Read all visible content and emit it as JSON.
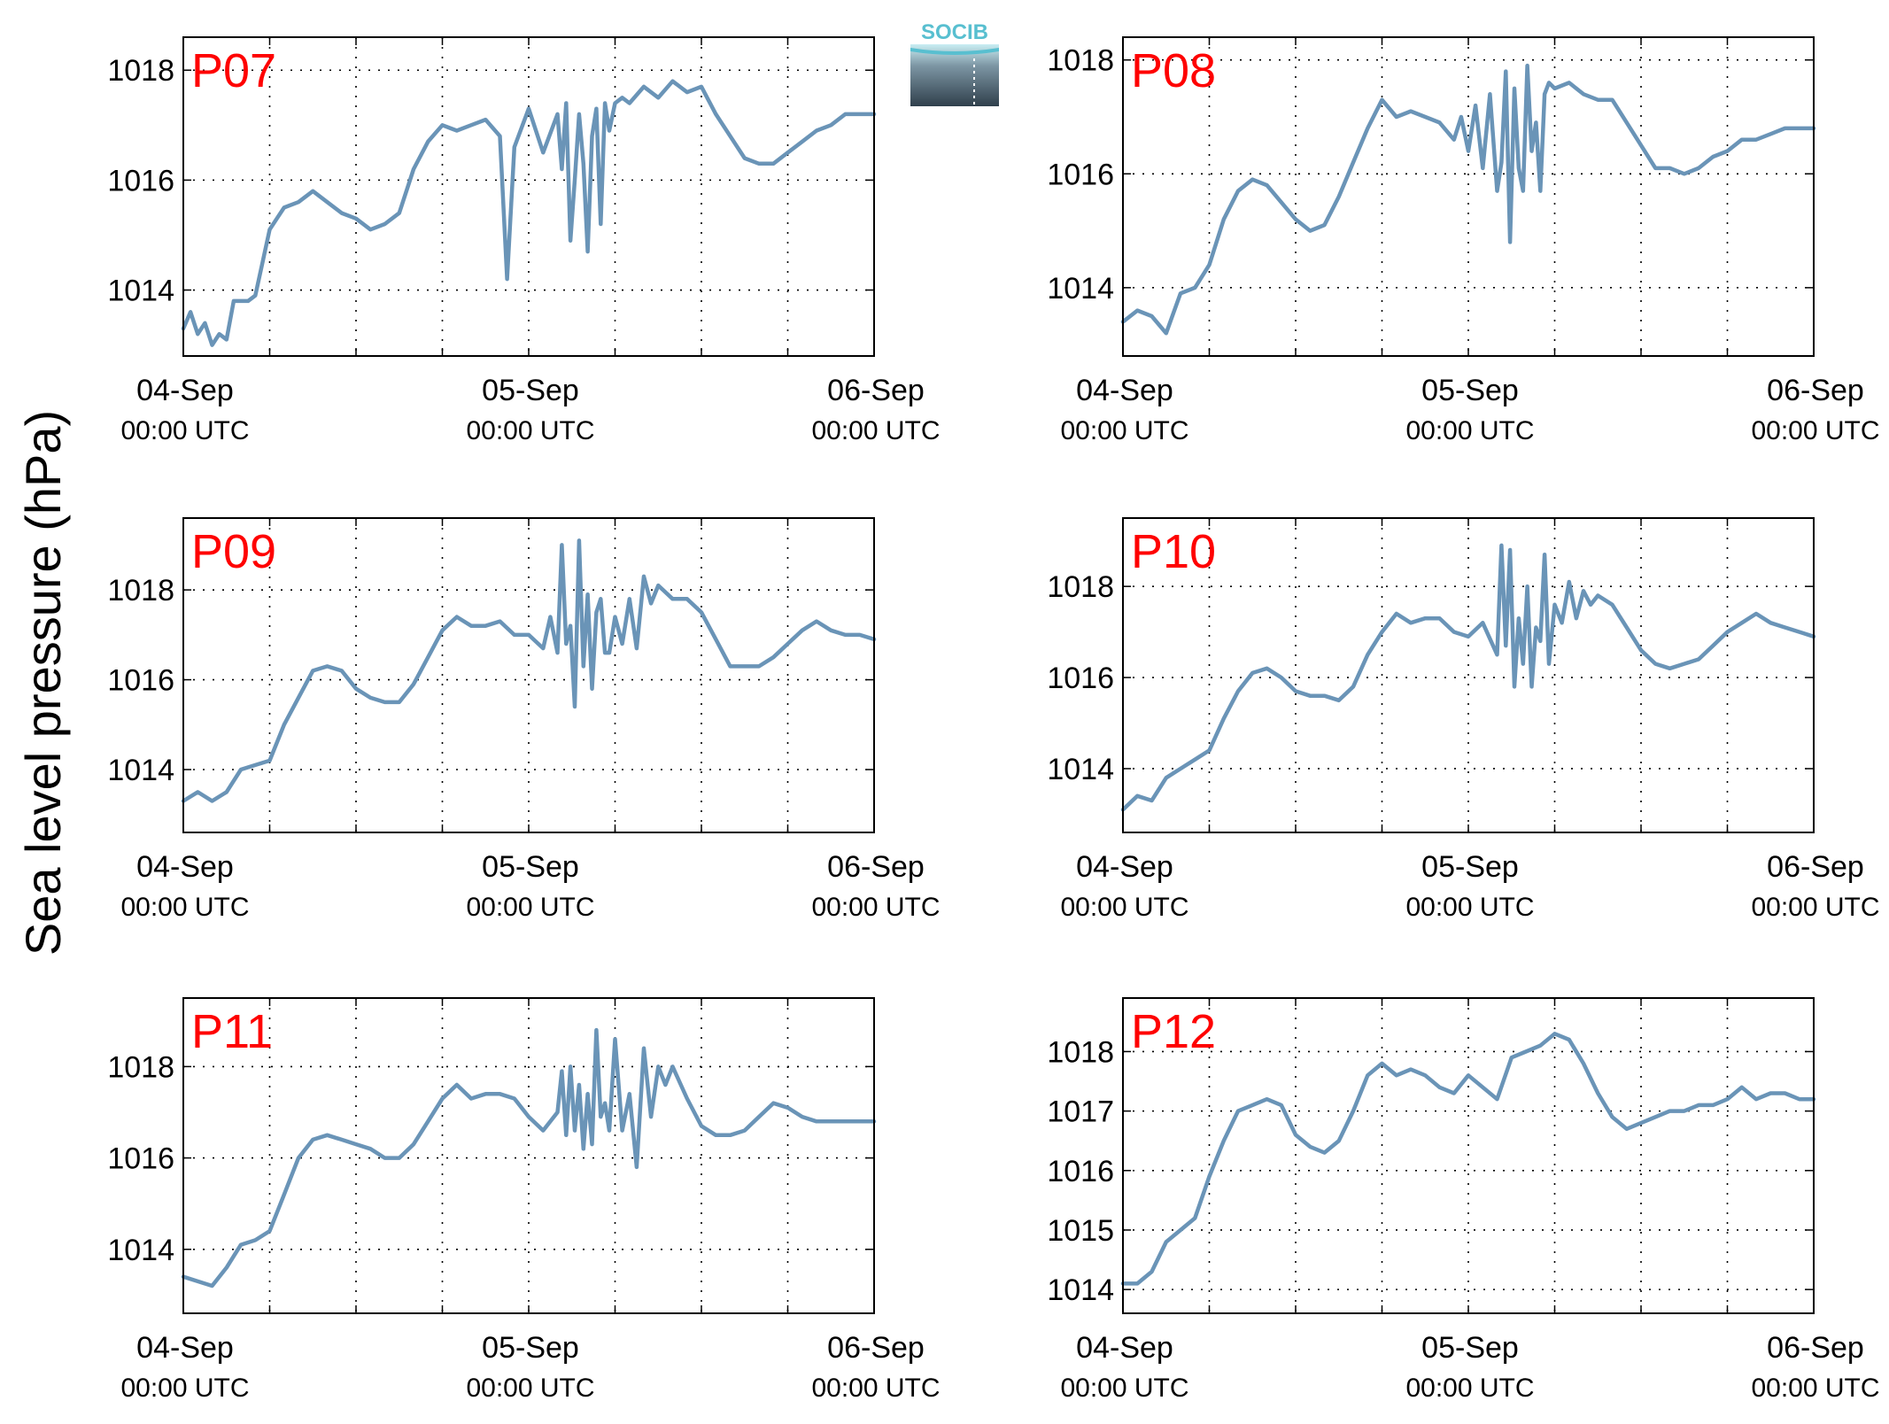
{
  "figure": {
    "ylabel": "Sea level pressure (hPa)",
    "logo_text": "SOCIB",
    "colors": {
      "line": "#6a94b7",
      "title": "#ff0000",
      "grid": "#000000",
      "logo_teal": "#58bfd0",
      "logo_dark": "#30404c"
    }
  },
  "chart_data": [
    {
      "type": "line",
      "title": "P07",
      "x_tick_dates": [
        "04-Sep",
        "05-Sep",
        "06-Sep"
      ],
      "x_tick_times": [
        "00:00 UTC",
        "00:00 UTC",
        "00:00 UTC"
      ],
      "xlim_hours": [
        0,
        48
      ],
      "ylim": [
        1012.8,
        1018.6
      ],
      "yticks": [
        1014,
        1016,
        1018
      ],
      "grid": true,
      "series": [
        {
          "x": [
            0,
            0.5,
            1,
            1.5,
            2,
            2.5,
            3,
            3.5,
            4,
            4.5,
            5,
            5.5,
            6,
            6.5,
            7,
            8,
            9,
            10,
            11,
            12,
            13,
            14,
            15,
            16,
            17,
            18,
            19,
            20,
            21,
            22,
            22.5,
            23,
            24,
            25,
            26,
            26.3,
            26.6,
            26.9,
            27.2,
            27.5,
            27.8,
            28.1,
            28.4,
            28.7,
            29,
            29.3,
            29.6,
            30,
            30.5,
            31,
            32,
            33,
            34,
            35,
            36,
            37,
            38,
            39,
            40,
            41,
            42,
            43,
            44,
            45,
            46,
            47,
            48
          ],
          "y": [
            1013.3,
            1013.6,
            1013.2,
            1013.4,
            1013.0,
            1013.2,
            1013.1,
            1013.8,
            1013.8,
            1013.8,
            1013.9,
            1014.5,
            1015.1,
            1015.3,
            1015.5,
            1015.6,
            1015.8,
            1015.6,
            1015.4,
            1015.3,
            1015.1,
            1015.2,
            1015.4,
            1016.2,
            1016.7,
            1017.0,
            1016.9,
            1017.0,
            1017.1,
            1016.8,
            1014.2,
            1016.6,
            1017.3,
            1016.5,
            1017.2,
            1016.2,
            1017.4,
            1014.9,
            1016.0,
            1017.2,
            1016.3,
            1014.7,
            1016.8,
            1017.3,
            1015.2,
            1017.4,
            1016.9,
            1017.4,
            1017.5,
            1017.4,
            1017.7,
            1017.5,
            1017.8,
            1017.6,
            1017.7,
            1017.2,
            1016.8,
            1016.4,
            1016.3,
            1016.3,
            1016.5,
            1016.7,
            1016.9,
            1017.0,
            1017.2,
            1017.2,
            1017.2
          ]
        }
      ]
    },
    {
      "type": "line",
      "title": "P08",
      "x_tick_dates": [
        "04-Sep",
        "05-Sep",
        "06-Sep"
      ],
      "x_tick_times": [
        "00:00 UTC",
        "00:00 UTC",
        "00:00 UTC"
      ],
      "xlim_hours": [
        0,
        48
      ],
      "ylim": [
        1012.8,
        1018.4
      ],
      "yticks": [
        1014,
        1016,
        1018
      ],
      "grid": true,
      "series": [
        {
          "x": [
            0,
            1,
            2,
            3,
            4,
            5,
            6,
            7,
            8,
            9,
            10,
            11,
            12,
            13,
            14,
            15,
            16,
            17,
            18,
            19,
            20,
            21,
            22,
            23,
            23.5,
            24,
            24.5,
            25,
            25.5,
            26,
            26.3,
            26.6,
            26.9,
            27.2,
            27.5,
            27.8,
            28.1,
            28.4,
            28.7,
            29,
            29.3,
            29.6,
            30,
            31,
            32,
            33,
            34,
            35,
            36,
            37,
            38,
            39,
            40,
            41,
            42,
            43,
            44,
            45,
            46,
            47,
            48
          ],
          "y": [
            1013.4,
            1013.6,
            1013.5,
            1013.2,
            1013.9,
            1014.0,
            1014.4,
            1015.2,
            1015.7,
            1015.9,
            1015.8,
            1015.5,
            1015.2,
            1015.0,
            1015.1,
            1015.6,
            1016.2,
            1016.8,
            1017.3,
            1017.0,
            1017.1,
            1017.0,
            1016.9,
            1016.6,
            1017.0,
            1016.4,
            1017.2,
            1016.1,
            1017.4,
            1015.7,
            1016.2,
            1017.8,
            1014.8,
            1017.5,
            1016.1,
            1015.7,
            1017.9,
            1016.4,
            1016.9,
            1015.7,
            1017.4,
            1017.6,
            1017.5,
            1017.6,
            1017.4,
            1017.3,
            1017.3,
            1016.9,
            1016.5,
            1016.1,
            1016.1,
            1016.0,
            1016.1,
            1016.3,
            1016.4,
            1016.6,
            1016.6,
            1016.7,
            1016.8,
            1016.8,
            1016.8
          ]
        }
      ]
    },
    {
      "type": "line",
      "title": "P09",
      "x_tick_dates": [
        "04-Sep",
        "05-Sep",
        "06-Sep"
      ],
      "x_tick_times": [
        "00:00 UTC",
        "00:00 UTC",
        "00:00 UTC"
      ],
      "xlim_hours": [
        0,
        48
      ],
      "ylim": [
        1012.6,
        1019.6
      ],
      "yticks": [
        1014,
        1016,
        1018
      ],
      "grid": true,
      "series": [
        {
          "x": [
            0,
            1,
            2,
            3,
            4,
            5,
            6,
            7,
            8,
            9,
            10,
            11,
            12,
            13,
            14,
            15,
            16,
            17,
            18,
            19,
            20,
            21,
            22,
            23,
            24,
            25,
            25.5,
            26,
            26.3,
            26.6,
            26.9,
            27.2,
            27.5,
            27.8,
            28.1,
            28.4,
            28.7,
            29,
            29.3,
            29.6,
            30,
            30.5,
            31,
            31.5,
            32,
            32.5,
            33,
            34,
            35,
            36,
            37,
            38,
            39,
            40,
            41,
            42,
            43,
            44,
            45,
            46,
            47,
            48
          ],
          "y": [
            1013.3,
            1013.5,
            1013.3,
            1013.5,
            1014.0,
            1014.1,
            1014.2,
            1015.0,
            1015.6,
            1016.2,
            1016.3,
            1016.2,
            1015.8,
            1015.6,
            1015.5,
            1015.5,
            1015.9,
            1016.5,
            1017.1,
            1017.4,
            1017.2,
            1017.2,
            1017.3,
            1017.0,
            1017.0,
            1016.7,
            1017.4,
            1016.6,
            1019.0,
            1016.8,
            1017.2,
            1015.4,
            1019.1,
            1016.3,
            1017.9,
            1015.8,
            1017.5,
            1017.8,
            1016.6,
            1016.6,
            1017.4,
            1016.8,
            1017.8,
            1016.7,
            1018.3,
            1017.7,
            1018.1,
            1017.8,
            1017.8,
            1017.5,
            1016.9,
            1016.3,
            1016.3,
            1016.3,
            1016.5,
            1016.8,
            1017.1,
            1017.3,
            1017.1,
            1017.0,
            1017.0,
            1016.9
          ]
        }
      ]
    },
    {
      "type": "line",
      "title": "P10",
      "x_tick_dates": [
        "04-Sep",
        "05-Sep",
        "06-Sep"
      ],
      "x_tick_times": [
        "00:00 UTC",
        "00:00 UTC",
        "00:00 UTC"
      ],
      "xlim_hours": [
        0,
        48
      ],
      "ylim": [
        1012.6,
        1019.5
      ],
      "yticks": [
        1014,
        1016,
        1018
      ],
      "grid": true,
      "series": [
        {
          "x": [
            0,
            1,
            2,
            3,
            4,
            5,
            6,
            7,
            8,
            9,
            10,
            11,
            12,
            13,
            14,
            15,
            16,
            17,
            18,
            19,
            20,
            21,
            22,
            23,
            24,
            25,
            26,
            26.3,
            26.6,
            26.9,
            27.2,
            27.5,
            27.8,
            28.1,
            28.4,
            28.7,
            29,
            29.3,
            29.6,
            30,
            30.5,
            31,
            31.5,
            32,
            32.5,
            33,
            34,
            35,
            36,
            37,
            38,
            39,
            40,
            41,
            42,
            43,
            44,
            45,
            46,
            47,
            48
          ],
          "y": [
            1013.1,
            1013.4,
            1013.3,
            1013.8,
            1014.0,
            1014.2,
            1014.4,
            1015.1,
            1015.7,
            1016.1,
            1016.2,
            1016.0,
            1015.7,
            1015.6,
            1015.6,
            1015.5,
            1015.8,
            1016.5,
            1017.0,
            1017.4,
            1017.2,
            1017.3,
            1017.3,
            1017.0,
            1016.9,
            1017.2,
            1016.5,
            1018.9,
            1016.7,
            1018.8,
            1015.8,
            1017.3,
            1016.3,
            1018.0,
            1015.8,
            1017.1,
            1016.8,
            1018.7,
            1016.3,
            1017.6,
            1017.2,
            1018.1,
            1017.3,
            1017.9,
            1017.6,
            1017.8,
            1017.6,
            1017.1,
            1016.6,
            1016.3,
            1016.2,
            1016.3,
            1016.4,
            1016.7,
            1017.0,
            1017.2,
            1017.4,
            1017.2,
            1017.1,
            1017.0,
            1016.9
          ]
        }
      ]
    },
    {
      "type": "line",
      "title": "P11",
      "x_tick_dates": [
        "04-Sep",
        "05-Sep",
        "06-Sep"
      ],
      "x_tick_times": [
        "00:00 UTC",
        "00:00 UTC",
        "00:00 UTC"
      ],
      "xlim_hours": [
        0,
        48
      ],
      "ylim": [
        1012.6,
        1019.5
      ],
      "yticks": [
        1014,
        1016,
        1018
      ],
      "grid": true,
      "series": [
        {
          "x": [
            0,
            1,
            2,
            3,
            4,
            5,
            6,
            7,
            8,
            9,
            10,
            11,
            12,
            13,
            14,
            15,
            16,
            17,
            18,
            19,
            20,
            21,
            22,
            23,
            24,
            25,
            26,
            26.3,
            26.6,
            26.9,
            27.2,
            27.5,
            27.8,
            28.1,
            28.4,
            28.7,
            29,
            29.3,
            29.6,
            30,
            30.5,
            31,
            31.5,
            32,
            32.5,
            33,
            33.5,
            34,
            35,
            36,
            37,
            38,
            39,
            40,
            41,
            42,
            43,
            44,
            45,
            46,
            47,
            48
          ],
          "y": [
            1013.4,
            1013.3,
            1013.2,
            1013.6,
            1014.1,
            1014.2,
            1014.4,
            1015.2,
            1016.0,
            1016.4,
            1016.5,
            1016.4,
            1016.3,
            1016.2,
            1016.0,
            1016.0,
            1016.3,
            1016.8,
            1017.3,
            1017.6,
            1017.3,
            1017.4,
            1017.4,
            1017.3,
            1016.9,
            1016.6,
            1017.0,
            1017.9,
            1016.5,
            1018.0,
            1016.6,
            1017.6,
            1016.2,
            1017.4,
            1016.3,
            1018.8,
            1016.9,
            1017.2,
            1016.6,
            1018.6,
            1016.6,
            1017.4,
            1015.8,
            1018.4,
            1016.9,
            1018.0,
            1017.6,
            1018.0,
            1017.3,
            1016.7,
            1016.5,
            1016.5,
            1016.6,
            1016.9,
            1017.2,
            1017.1,
            1016.9,
            1016.8,
            1016.8,
            1016.8,
            1016.8,
            1016.8
          ]
        }
      ]
    },
    {
      "type": "line",
      "title": "P12",
      "x_tick_dates": [
        "04-Sep",
        "05-Sep",
        "06-Sep"
      ],
      "x_tick_times": [
        "00:00 UTC",
        "00:00 UTC",
        "00:00 UTC"
      ],
      "xlim_hours": [
        0,
        48
      ],
      "ylim": [
        1013.6,
        1018.9
      ],
      "yticks": [
        1014,
        1015,
        1016,
        1017,
        1018
      ],
      "grid": true,
      "series": [
        {
          "x": [
            0,
            1,
            2,
            3,
            4,
            5,
            6,
            7,
            8,
            9,
            10,
            11,
            12,
            13,
            14,
            15,
            16,
            17,
            18,
            19,
            20,
            21,
            22,
            23,
            24,
            25,
            26,
            27,
            28,
            29,
            30,
            31,
            32,
            33,
            34,
            35,
            36,
            37,
            38,
            39,
            40,
            41,
            42,
            43,
            44,
            45,
            46,
            47,
            48
          ],
          "y": [
            1014.1,
            1014.1,
            1014.3,
            1014.8,
            1015.0,
            1015.2,
            1015.9,
            1016.5,
            1017.0,
            1017.1,
            1017.2,
            1017.1,
            1016.6,
            1016.4,
            1016.3,
            1016.5,
            1017.0,
            1017.6,
            1017.8,
            1017.6,
            1017.7,
            1017.6,
            1017.4,
            1017.3,
            1017.6,
            1017.4,
            1017.2,
            1017.9,
            1018.0,
            1018.1,
            1018.3,
            1018.2,
            1017.8,
            1017.3,
            1016.9,
            1016.7,
            1016.8,
            1016.9,
            1017.0,
            1017.0,
            1017.1,
            1017.1,
            1017.2,
            1017.4,
            1017.2,
            1017.3,
            1017.3,
            1017.2,
            1017.2
          ]
        }
      ]
    }
  ]
}
